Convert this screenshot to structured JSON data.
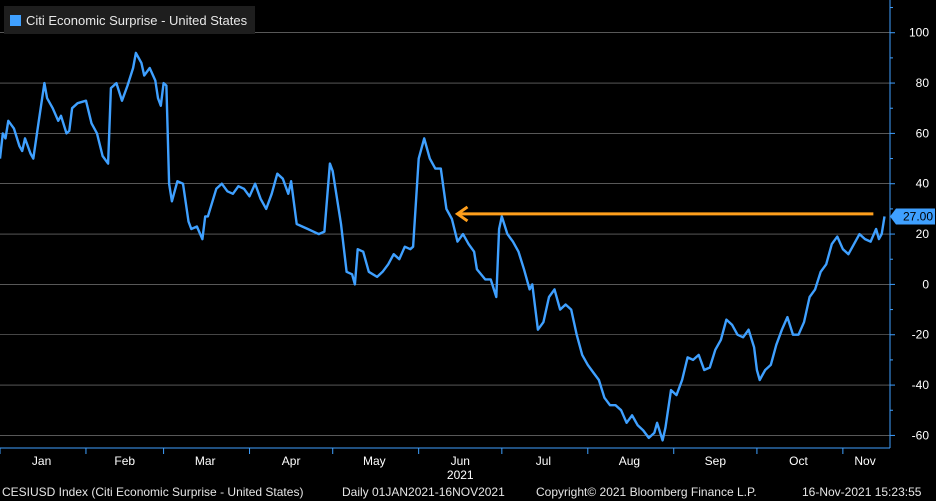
{
  "legend": {
    "label": "Citi Economic Surprise - United States"
  },
  "footer": {
    "index": "CESIUSD Index (Citi Economic Surprise - United States)",
    "period": "Daily 01JAN2021-16NOV2021",
    "copyright": "Copyright© 2021 Bloomberg Finance L.P.",
    "timestamp": "16-Nov-2021 15:23:55"
  },
  "colors": {
    "line": "#3fa0ff",
    "arrow": "#ff9f1c",
    "axis": "#3fa0ff",
    "grid": "#ffffff",
    "background": "#000000"
  },
  "chart_data": {
    "type": "line",
    "title": "",
    "xlabel": "",
    "ylabel": "",
    "ylim": [
      -65,
      113
    ],
    "yticks": [
      100,
      80,
      60,
      40,
      20,
      0,
      -20,
      -40,
      -60
    ],
    "xlim": [
      "2021-01-01",
      "2021-11-18"
    ],
    "x_tick_labels": [
      "Jan",
      "Feb",
      "Mar",
      "Apr",
      "May",
      "Jun",
      "Jul",
      "Aug",
      "Sep",
      "Oct",
      "Nov"
    ],
    "year_label": "2021",
    "grid": true,
    "legend_position": "top-left",
    "last_value_label": "27.00",
    "series": [
      {
        "name": "Citi Economic Surprise - United States",
        "points": [
          [
            "2021-01-01",
            50
          ],
          [
            "2021-01-02",
            60
          ],
          [
            "2021-01-03",
            58
          ],
          [
            "2021-01-04",
            65
          ],
          [
            "2021-01-06",
            62
          ],
          [
            "2021-01-08",
            55
          ],
          [
            "2021-01-09",
            53
          ],
          [
            "2021-01-10",
            58
          ],
          [
            "2021-01-12",
            52
          ],
          [
            "2021-01-13",
            50
          ],
          [
            "2021-01-15",
            65
          ],
          [
            "2021-01-17",
            80
          ],
          [
            "2021-01-18",
            74
          ],
          [
            "2021-01-20",
            70
          ],
          [
            "2021-01-22",
            65
          ],
          [
            "2021-01-23",
            67
          ],
          [
            "2021-01-25",
            60
          ],
          [
            "2021-01-26",
            61
          ],
          [
            "2021-01-27",
            70
          ],
          [
            "2021-01-29",
            72
          ],
          [
            "2021-02-01",
            73
          ],
          [
            "2021-02-03",
            64
          ],
          [
            "2021-02-05",
            60
          ],
          [
            "2021-02-07",
            51
          ],
          [
            "2021-02-09",
            48
          ],
          [
            "2021-02-10",
            78
          ],
          [
            "2021-02-12",
            80
          ],
          [
            "2021-02-14",
            73
          ],
          [
            "2021-02-16",
            79
          ],
          [
            "2021-02-18",
            86
          ],
          [
            "2021-02-19",
            92
          ],
          [
            "2021-02-21",
            88
          ],
          [
            "2021-02-22",
            83
          ],
          [
            "2021-02-24",
            86
          ],
          [
            "2021-02-26",
            81
          ],
          [
            "2021-02-27",
            74
          ],
          [
            "2021-02-28",
            71
          ],
          [
            "2021-03-01",
            80
          ],
          [
            "2021-03-02",
            79
          ],
          [
            "2021-03-03",
            40
          ],
          [
            "2021-03-04",
            33
          ],
          [
            "2021-03-06",
            41
          ],
          [
            "2021-03-08",
            40
          ],
          [
            "2021-03-10",
            25
          ],
          [
            "2021-03-11",
            22
          ],
          [
            "2021-03-13",
            23
          ],
          [
            "2021-03-15",
            18
          ],
          [
            "2021-03-16",
            27
          ],
          [
            "2021-03-17",
            27
          ],
          [
            "2021-03-20",
            38
          ],
          [
            "2021-03-22",
            40
          ],
          [
            "2021-03-24",
            37
          ],
          [
            "2021-03-26",
            36
          ],
          [
            "2021-03-28",
            39
          ],
          [
            "2021-03-30",
            38
          ],
          [
            "2021-04-01",
            35
          ],
          [
            "2021-04-03",
            40
          ],
          [
            "2021-04-05",
            34
          ],
          [
            "2021-04-07",
            30
          ],
          [
            "2021-04-09",
            36
          ],
          [
            "2021-04-11",
            44
          ],
          [
            "2021-04-13",
            42
          ],
          [
            "2021-04-15",
            36
          ],
          [
            "2021-04-16",
            41
          ],
          [
            "2021-04-18",
            24
          ],
          [
            "2021-04-20",
            23
          ],
          [
            "2021-04-22",
            22
          ],
          [
            "2021-04-24",
            21
          ],
          [
            "2021-04-26",
            20
          ],
          [
            "2021-04-28",
            21
          ],
          [
            "2021-04-30",
            48
          ],
          [
            "2021-05-01",
            45
          ],
          [
            "2021-05-04",
            24
          ],
          [
            "2021-05-06",
            5
          ],
          [
            "2021-05-08",
            4
          ],
          [
            "2021-05-09",
            0
          ],
          [
            "2021-05-10",
            14
          ],
          [
            "2021-05-12",
            13
          ],
          [
            "2021-05-14",
            5
          ],
          [
            "2021-05-17",
            3
          ],
          [
            "2021-05-19",
            5
          ],
          [
            "2021-05-21",
            8
          ],
          [
            "2021-05-23",
            12
          ],
          [
            "2021-05-25",
            10
          ],
          [
            "2021-05-27",
            15
          ],
          [
            "2021-05-29",
            14
          ],
          [
            "2021-05-30",
            15
          ],
          [
            "2021-06-01",
            50
          ],
          [
            "2021-06-03",
            58
          ],
          [
            "2021-06-05",
            50
          ],
          [
            "2021-06-07",
            46
          ],
          [
            "2021-06-09",
            46
          ],
          [
            "2021-06-11",
            30
          ],
          [
            "2021-06-13",
            26
          ],
          [
            "2021-06-15",
            17
          ],
          [
            "2021-06-17",
            20
          ],
          [
            "2021-06-19",
            16
          ],
          [
            "2021-06-21",
            13
          ],
          [
            "2021-06-22",
            6
          ],
          [
            "2021-06-25",
            2
          ],
          [
            "2021-06-27",
            2
          ],
          [
            "2021-06-29",
            -5
          ],
          [
            "2021-06-30",
            22
          ],
          [
            "2021-07-01",
            27
          ],
          [
            "2021-07-03",
            20
          ],
          [
            "2021-07-05",
            17
          ],
          [
            "2021-07-07",
            13
          ],
          [
            "2021-07-09",
            6
          ],
          [
            "2021-07-11",
            -2
          ],
          [
            "2021-07-12",
            0
          ],
          [
            "2021-07-14",
            -18
          ],
          [
            "2021-07-16",
            -15
          ],
          [
            "2021-07-18",
            -5
          ],
          [
            "2021-07-20",
            -2
          ],
          [
            "2021-07-22",
            -10
          ],
          [
            "2021-07-24",
            -8
          ],
          [
            "2021-07-26",
            -10
          ],
          [
            "2021-07-28",
            -20
          ],
          [
            "2021-07-30",
            -28
          ],
          [
            "2021-08-01",
            -32
          ],
          [
            "2021-08-03",
            -35
          ],
          [
            "2021-08-05",
            -38
          ],
          [
            "2021-08-07",
            -45
          ],
          [
            "2021-08-09",
            -48
          ],
          [
            "2021-08-11",
            -48
          ],
          [
            "2021-08-13",
            -50
          ],
          [
            "2021-08-15",
            -55
          ],
          [
            "2021-08-17",
            -52
          ],
          [
            "2021-08-19",
            -56
          ],
          [
            "2021-08-21",
            -58
          ],
          [
            "2021-08-23",
            -61
          ],
          [
            "2021-08-25",
            -59
          ],
          [
            "2021-08-26",
            -55
          ],
          [
            "2021-08-28",
            -62
          ],
          [
            "2021-08-29",
            -57
          ],
          [
            "2021-08-31",
            -42
          ],
          [
            "2021-09-02",
            -44
          ],
          [
            "2021-09-04",
            -38
          ],
          [
            "2021-09-06",
            -29
          ],
          [
            "2021-09-08",
            -30
          ],
          [
            "2021-09-10",
            -28
          ],
          [
            "2021-09-12",
            -34
          ],
          [
            "2021-09-14",
            -33
          ],
          [
            "2021-09-16",
            -26
          ],
          [
            "2021-09-18",
            -22
          ],
          [
            "2021-09-20",
            -14
          ],
          [
            "2021-09-22",
            -16
          ],
          [
            "2021-09-24",
            -20
          ],
          [
            "2021-09-26",
            -21
          ],
          [
            "2021-09-28",
            -18
          ],
          [
            "2021-09-30",
            -25
          ],
          [
            "2021-10-01",
            -34
          ],
          [
            "2021-10-02",
            -38
          ],
          [
            "2021-10-04",
            -34
          ],
          [
            "2021-10-06",
            -32
          ],
          [
            "2021-10-08",
            -24
          ],
          [
            "2021-10-10",
            -18
          ],
          [
            "2021-10-12",
            -13
          ],
          [
            "2021-10-14",
            -20
          ],
          [
            "2021-10-16",
            -20
          ],
          [
            "2021-10-18",
            -15
          ],
          [
            "2021-10-20",
            -5
          ],
          [
            "2021-10-22",
            -2
          ],
          [
            "2021-10-24",
            5
          ],
          [
            "2021-10-26",
            8
          ],
          [
            "2021-10-28",
            16
          ],
          [
            "2021-10-30",
            19
          ],
          [
            "2021-11-01",
            14
          ],
          [
            "2021-11-03",
            12
          ],
          [
            "2021-11-05",
            16
          ],
          [
            "2021-11-07",
            20
          ],
          [
            "2021-11-09",
            18
          ],
          [
            "2021-11-11",
            17
          ],
          [
            "2021-11-13",
            22
          ],
          [
            "2021-11-14",
            18
          ],
          [
            "2021-11-15",
            20
          ],
          [
            "2021-11-16",
            27
          ]
        ]
      }
    ],
    "annotations": [
      {
        "type": "arrow",
        "from": [
          "2021-11-12",
          28
        ],
        "to": [
          "2021-06-15",
          28
        ]
      }
    ]
  }
}
